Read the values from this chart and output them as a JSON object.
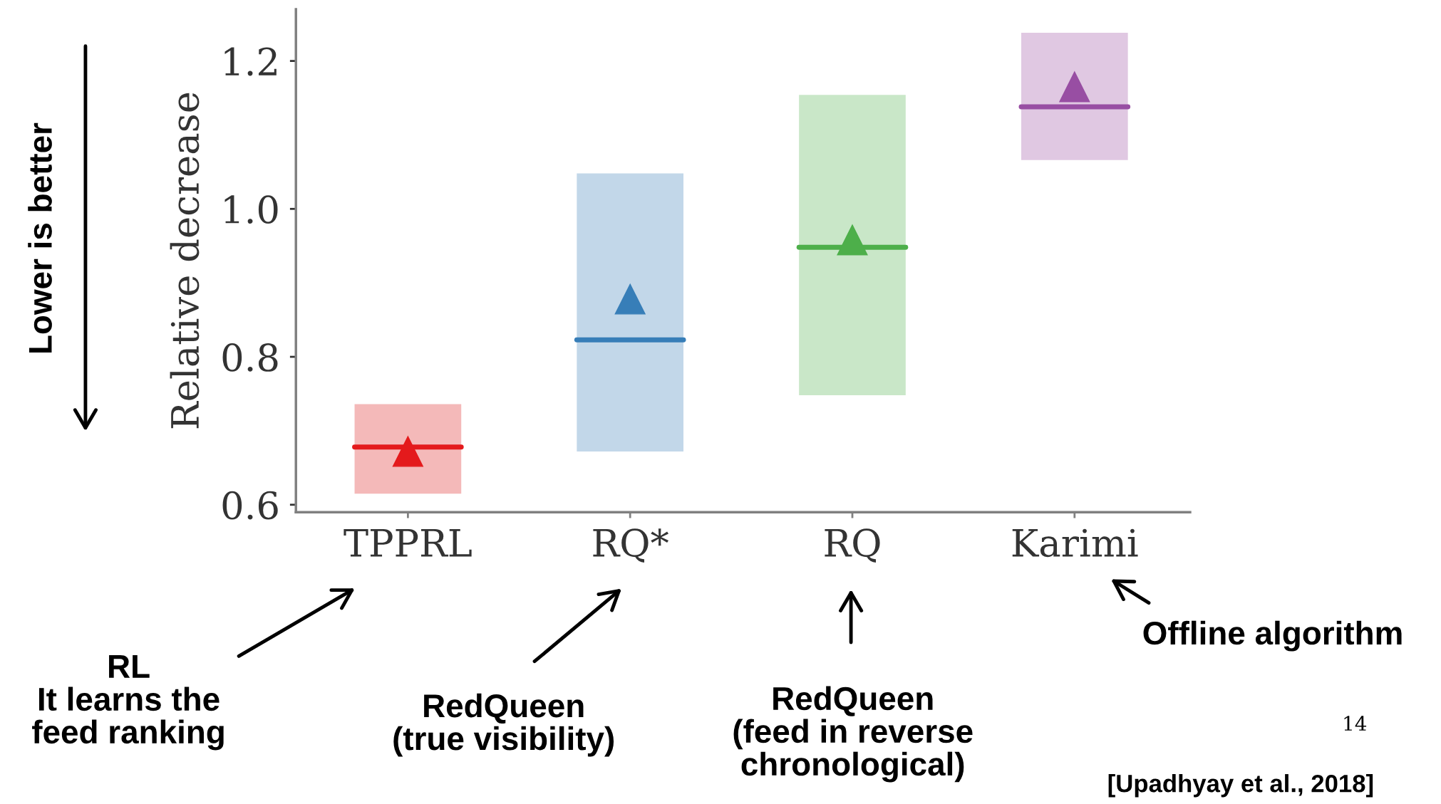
{
  "chart_data": {
    "type": "box",
    "ylabel": "Relative decrease",
    "categories": [
      "TPPRL",
      "RQ*",
      "RQ",
      "Karimi"
    ],
    "colors": [
      "#e41a1c",
      "#377eb8",
      "#4daf4a",
      "#984ea3"
    ],
    "series": [
      {
        "colors": [
          "#f4b9b9",
          "#c2d7e9",
          "#c9e7c8",
          "#e0c8e2"
        ],
        "boxes": [
          {
            "q1": 0.615,
            "median": 0.678,
            "q3": 0.736,
            "mean": 0.672
          },
          {
            "q1": 0.672,
            "median": 0.823,
            "q3": 1.048,
            "mean": 0.878
          },
          {
            "q1": 0.748,
            "median": 0.948,
            "q3": 1.154,
            "mean": 0.958
          },
          {
            "q1": 1.066,
            "median": 1.138,
            "q3": 1.238,
            "mean": 1.165
          }
        ]
      }
    ],
    "marker": "triangle",
    "ylim": [
      0.59,
      1.27
    ],
    "yticks": [
      0.6,
      0.8,
      {
        "value": 1.0,
        "label": "1.0"
      },
      1.2
    ],
    "grid": false,
    "legend": false,
    "annotations": [
      "Lower is better",
      "RL\nIt learns the\nfeed ranking",
      "RedQueen\n(true visibility)",
      "RedQueen\n(feed in reverse\nchronological)",
      "Offline algorithm",
      "14",
      "[Upadhyay et al., 2018]"
    ]
  }
}
